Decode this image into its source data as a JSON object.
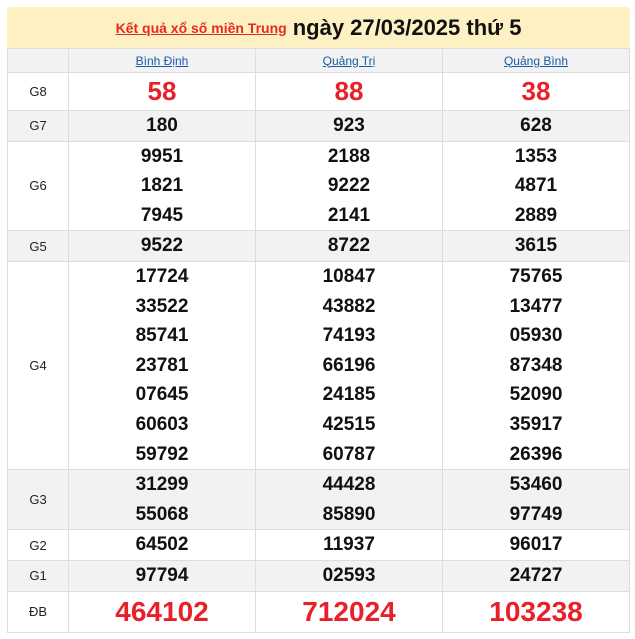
{
  "header": {
    "link_text": "Kết quả xổ số miền Trung",
    "date_text": "ngày 27/03/2025 thứ 5"
  },
  "provinces": [
    "Bình Định",
    "Quảng Trị",
    "Quảng Bình"
  ],
  "prizes": [
    {
      "label": "G8",
      "values": [
        [
          "58"
        ],
        [
          "88"
        ],
        [
          "38"
        ]
      ]
    },
    {
      "label": "G7",
      "values": [
        [
          "180"
        ],
        [
          "923"
        ],
        [
          "628"
        ]
      ]
    },
    {
      "label": "G6",
      "values": [
        [
          "9951",
          "1821",
          "7945"
        ],
        [
          "2188",
          "9222",
          "2141"
        ],
        [
          "1353",
          "4871",
          "2889"
        ]
      ]
    },
    {
      "label": "G5",
      "values": [
        [
          "9522"
        ],
        [
          "8722"
        ],
        [
          "3615"
        ]
      ]
    },
    {
      "label": "G4",
      "values": [
        [
          "17724",
          "33522",
          "85741",
          "23781",
          "07645",
          "60603",
          "59792"
        ],
        [
          "10847",
          "43882",
          "74193",
          "66196",
          "24185",
          "42515",
          "60787"
        ],
        [
          "75765",
          "13477",
          "05930",
          "87348",
          "52090",
          "35917",
          "26396"
        ]
      ]
    },
    {
      "label": "G3",
      "values": [
        [
          "31299",
          "55068"
        ],
        [
          "44428",
          "85890"
        ],
        [
          "53460",
          "97749"
        ]
      ]
    },
    {
      "label": "G2",
      "values": [
        [
          "64502"
        ],
        [
          "11937"
        ],
        [
          "96017"
        ]
      ]
    },
    {
      "label": "G1",
      "values": [
        [
          "97794"
        ],
        [
          "02593"
        ],
        [
          "24727"
        ]
      ]
    },
    {
      "label": "ĐB",
      "values": [
        [
          "464102"
        ],
        [
          "712024"
        ],
        [
          "103238"
        ]
      ]
    }
  ],
  "colors": {
    "header_bg": "#fdf0c3",
    "highlight": "#e8202a",
    "link": "#1a5aa8"
  }
}
